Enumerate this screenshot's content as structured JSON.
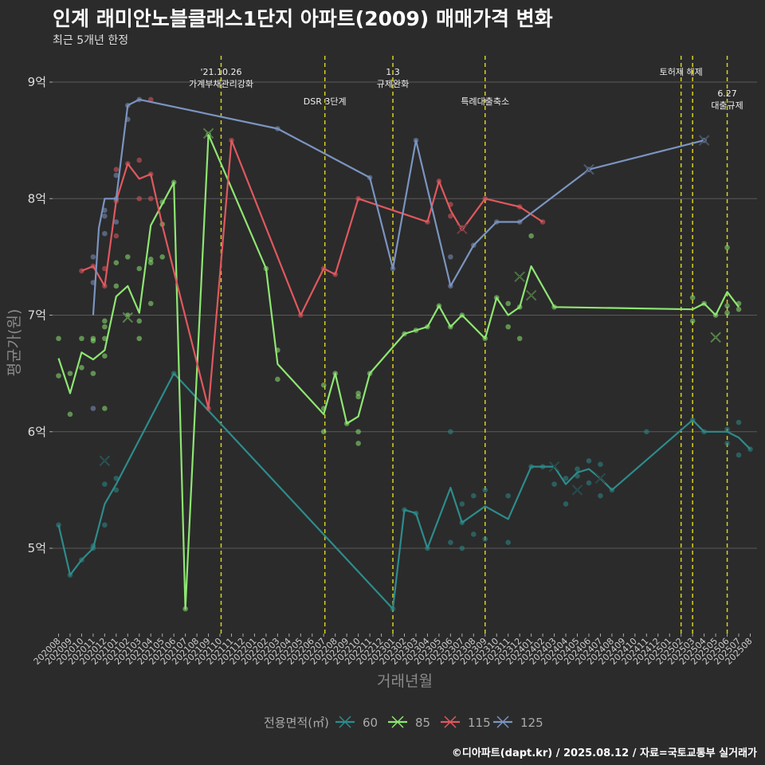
{
  "chart_data": {
    "type": "line",
    "title": "인계 래미안노블클래스1단지 아파트(2009) 매매가격 변화",
    "subtitle": "최근 5개년 한정",
    "caption": "©디아파트(dapt.kr) / 2025.08.12 / 자료=국토교통부 실거래가",
    "xlabel": "거래년월",
    "ylabel": "평균가(원)",
    "x": [
      "202008",
      "202009",
      "202010",
      "202011",
      "202012",
      "202101",
      "202102",
      "202103",
      "202104",
      "202105",
      "202106",
      "202107",
      "202108",
      "202109",
      "202110",
      "202111",
      "202112",
      "202201",
      "202202",
      "202203",
      "202204",
      "202205",
      "202206",
      "202207",
      "202208",
      "202209",
      "202210",
      "202211",
      "202212",
      "202301",
      "202302",
      "202303",
      "202304",
      "202305",
      "202306",
      "202307",
      "202308",
      "202309",
      "202310",
      "202311",
      "202312",
      "202401",
      "202402",
      "202403",
      "202404",
      "202405",
      "202406",
      "202407",
      "202408",
      "202409",
      "202410",
      "202411",
      "202412",
      "202501",
      "202502",
      "202503",
      "202504",
      "202505",
      "202506",
      "202507",
      "202508"
    ],
    "ylim": [
      4.3,
      9.3
    ],
    "yticks": [
      {
        "v": 5,
        "label": "5억"
      },
      {
        "v": 6,
        "label": "6억"
      },
      {
        "v": 7,
        "label": "7억"
      },
      {
        "v": 8,
        "label": "8억"
      },
      {
        "v": 9,
        "label": "9억"
      }
    ],
    "legend_title": "전용면적(㎡)",
    "legend_position": "bottom",
    "grid": true,
    "events": [
      {
        "x": 14.1,
        "lines": [
          "'21.10.26",
          "가계부채관리강화"
        ]
      },
      {
        "x": 23.1,
        "lines": [
          "DSR 3단계"
        ]
      },
      {
        "x": 29.0,
        "lines": [
          "1.3",
          "규제완화"
        ]
      },
      {
        "x": 37.0,
        "lines": [
          "특례대출축소"
        ]
      },
      {
        "x": 54.0,
        "lines": [
          "토허제 해제"
        ]
      },
      {
        "x": 55.0,
        "lines": []
      },
      {
        "x": 58.0,
        "lines": [
          "6.27",
          "대출규제"
        ]
      }
    ],
    "series": [
      {
        "name": "60",
        "color": "#2e8b8b",
        "line": [
          [
            0,
            5.2
          ],
          [
            1,
            4.77
          ],
          [
            2,
            4.9
          ],
          [
            3,
            5.0
          ],
          [
            4,
            5.38
          ],
          [
            5,
            5.55
          ],
          [
            10,
            6.5
          ],
          [
            29,
            4.48
          ],
          [
            30,
            5.33
          ],
          [
            31,
            5.3
          ],
          [
            32,
            5.0
          ],
          [
            34,
            5.52
          ],
          [
            35,
            5.22
          ],
          [
            37,
            5.36
          ],
          [
            39,
            5.25
          ],
          [
            41,
            5.7
          ],
          [
            42,
            5.7
          ],
          [
            43,
            5.7
          ],
          [
            44,
            5.55
          ],
          [
            45,
            5.65
          ],
          [
            46,
            5.68
          ],
          [
            47,
            5.6
          ],
          [
            48,
            5.5
          ],
          [
            55,
            6.1
          ],
          [
            56,
            6.0
          ],
          [
            58,
            6.0
          ],
          [
            59,
            5.95
          ],
          [
            60,
            5.85
          ]
        ],
        "points": [
          [
            0,
            5.2
          ],
          [
            1,
            4.77
          ],
          [
            2,
            4.9
          ],
          [
            3,
            5.0
          ],
          [
            3,
            5.02
          ],
          [
            4,
            5.2
          ],
          [
            4,
            5.55
          ],
          [
            5,
            5.5
          ],
          [
            5,
            5.6
          ],
          [
            10,
            6.5
          ],
          [
            29,
            4.48
          ],
          [
            30,
            5.33
          ],
          [
            31,
            5.3
          ],
          [
            32,
            5.0
          ],
          [
            34,
            6.0
          ],
          [
            34,
            5.05
          ],
          [
            35,
            5.38
          ],
          [
            35,
            5.22
          ],
          [
            35,
            5.0
          ],
          [
            36,
            5.12
          ],
          [
            36,
            5.45
          ],
          [
            37,
            5.08
          ],
          [
            37,
            5.5
          ],
          [
            39,
            5.05
          ],
          [
            39,
            5.45
          ],
          [
            41,
            5.7
          ],
          [
            42,
            5.7
          ],
          [
            43,
            5.55
          ],
          [
            44,
            5.6
          ],
          [
            44,
            5.38
          ],
          [
            45,
            5.68
          ],
          [
            45,
            5.62
          ],
          [
            46,
            5.75
          ],
          [
            46,
            5.56
          ],
          [
            47,
            5.72
          ],
          [
            47,
            5.45
          ],
          [
            48,
            5.5
          ],
          [
            51,
            6.0
          ],
          [
            55,
            6.1
          ],
          [
            56,
            6.0
          ],
          [
            58,
            5.9
          ],
          [
            58,
            6.02
          ],
          [
            59,
            5.8
          ],
          [
            59,
            6.08
          ],
          [
            60,
            5.85
          ]
        ],
        "crosses": [
          [
            4,
            5.75
          ],
          [
            43,
            5.7
          ],
          [
            45,
            5.5
          ],
          [
            47,
            5.6
          ]
        ]
      },
      {
        "name": "85",
        "color": "#8ee672",
        "line": [
          [
            0,
            6.63
          ],
          [
            1,
            6.33
          ],
          [
            2,
            6.68
          ],
          [
            3,
            6.62
          ],
          [
            4,
            6.7
          ],
          [
            5,
            7.16
          ],
          [
            6,
            7.25
          ],
          [
            7,
            7.02
          ],
          [
            8,
            7.77
          ],
          [
            10,
            8.14
          ],
          [
            11,
            4.48
          ],
          [
            13,
            8.55
          ],
          [
            18,
            7.4
          ],
          [
            19,
            6.58
          ],
          [
            23,
            6.15
          ],
          [
            24,
            6.5
          ],
          [
            25,
            6.07
          ],
          [
            26,
            6.13
          ],
          [
            27,
            6.5
          ],
          [
            30,
            6.84
          ],
          [
            31,
            6.87
          ],
          [
            32,
            6.9
          ],
          [
            33,
            7.08
          ],
          [
            34,
            6.9
          ],
          [
            35,
            7.0
          ],
          [
            37,
            6.8
          ],
          [
            38,
            7.15
          ],
          [
            39,
            7.0
          ],
          [
            40,
            7.07
          ],
          [
            41,
            7.42
          ],
          [
            43,
            7.07
          ],
          [
            55,
            7.05
          ],
          [
            56,
            7.1
          ],
          [
            57,
            7.0
          ],
          [
            58,
            7.2
          ],
          [
            59,
            7.07
          ]
        ],
        "points": [
          [
            0,
            6.8
          ],
          [
            0,
            6.48
          ],
          [
            1,
            6.5
          ],
          [
            1,
            6.15
          ],
          [
            2,
            6.8
          ],
          [
            2,
            6.55
          ],
          [
            3,
            6.8
          ],
          [
            3,
            6.5
          ],
          [
            3,
            6.78
          ],
          [
            4,
            6.95
          ],
          [
            4,
            6.9
          ],
          [
            4,
            6.8
          ],
          [
            4,
            6.65
          ],
          [
            4,
            6.2
          ],
          [
            5,
            7.45
          ],
          [
            5,
            7.25
          ],
          [
            6,
            7.5
          ],
          [
            6,
            7.0
          ],
          [
            7,
            7.4
          ],
          [
            7,
            6.95
          ],
          [
            7,
            6.8
          ],
          [
            8,
            7.1
          ],
          [
            8,
            7.48
          ],
          [
            8,
            7.45
          ],
          [
            9,
            7.5
          ],
          [
            9,
            7.78
          ],
          [
            9,
            7.97
          ],
          [
            10,
            8.14
          ],
          [
            11,
            4.48
          ],
          [
            13,
            8.55
          ],
          [
            18,
            7.4
          ],
          [
            19,
            6.7
          ],
          [
            19,
            6.45
          ],
          [
            23,
            6.2
          ],
          [
            23,
            6.4
          ],
          [
            23,
            6.0
          ],
          [
            24,
            6.5
          ],
          [
            25,
            6.07
          ],
          [
            26,
            6.3
          ],
          [
            26,
            6.33
          ],
          [
            26,
            6.0
          ],
          [
            26,
            5.9
          ],
          [
            27,
            6.5
          ],
          [
            30,
            6.84
          ],
          [
            31,
            6.87
          ],
          [
            32,
            6.9
          ],
          [
            33,
            7.08
          ],
          [
            34,
            6.9
          ],
          [
            35,
            7.0
          ],
          [
            37,
            6.8
          ],
          [
            38,
            7.15
          ],
          [
            39,
            7.1
          ],
          [
            39,
            6.9
          ],
          [
            40,
            6.8
          ],
          [
            40,
            7.07
          ],
          [
            41,
            7.68
          ],
          [
            43,
            7.07
          ],
          [
            55,
            7.15
          ],
          [
            55,
            6.95
          ],
          [
            56,
            7.1
          ],
          [
            57,
            7.0
          ],
          [
            58,
            7.58
          ],
          [
            58,
            7.08
          ],
          [
            58,
            7.02
          ],
          [
            59,
            7.1
          ],
          [
            59,
            7.05
          ]
        ],
        "crosses": [
          [
            6,
            6.98
          ],
          [
            13,
            8.56
          ],
          [
            40,
            7.33
          ],
          [
            41,
            7.17
          ],
          [
            57,
            6.81
          ]
        ]
      },
      {
        "name": "115",
        "color": "#e0585e",
        "line": [
          [
            2,
            7.38
          ],
          [
            3,
            7.42
          ],
          [
            4,
            7.25
          ],
          [
            5,
            7.98
          ],
          [
            6,
            8.3
          ],
          [
            7,
            8.17
          ],
          [
            8,
            8.21
          ],
          [
            9,
            7.77
          ],
          [
            13,
            6.2
          ],
          [
            15,
            8.5
          ],
          [
            21,
            7.0
          ],
          [
            23,
            7.4
          ],
          [
            24,
            7.35
          ],
          [
            26,
            8.0
          ],
          [
            32,
            7.8
          ],
          [
            33,
            8.15
          ],
          [
            34,
            7.9
          ],
          [
            35,
            7.73
          ],
          [
            37,
            8.0
          ],
          [
            40,
            7.93
          ],
          [
            42,
            7.8
          ]
        ],
        "points": [
          [
            2,
            7.38
          ],
          [
            3,
            7.42
          ],
          [
            4,
            7.25
          ],
          [
            4,
            7.4
          ],
          [
            5,
            7.98
          ],
          [
            5,
            8.25
          ],
          [
            5,
            7.68
          ],
          [
            6,
            8.3
          ],
          [
            7,
            8.0
          ],
          [
            7,
            8.33
          ],
          [
            8,
            8.0
          ],
          [
            8,
            8.21
          ],
          [
            8,
            8.85
          ],
          [
            13,
            6.2
          ],
          [
            15,
            8.5
          ],
          [
            21,
            7.0
          ],
          [
            23,
            7.4
          ],
          [
            24,
            7.35
          ],
          [
            26,
            8.0
          ],
          [
            32,
            7.8
          ],
          [
            33,
            8.15
          ],
          [
            34,
            7.95
          ],
          [
            34,
            7.85
          ],
          [
            35,
            7.75
          ],
          [
            37,
            8.0
          ],
          [
            40,
            7.93
          ],
          [
            42,
            7.8
          ]
        ],
        "crosses": [
          [
            35,
            7.74
          ]
        ]
      },
      {
        "name": "125",
        "color": "#7b94c0",
        "line": [
          [
            3,
            7.0
          ],
          [
            3.5,
            7.75
          ],
          [
            4,
            8.0
          ],
          [
            5,
            8.0
          ],
          [
            6,
            8.8
          ],
          [
            7,
            8.85
          ],
          [
            19,
            8.6
          ],
          [
            27,
            8.18
          ],
          [
            29,
            7.4
          ],
          [
            31,
            8.5
          ],
          [
            34,
            7.25
          ],
          [
            36,
            7.6
          ],
          [
            38,
            7.8
          ],
          [
            40,
            7.8
          ],
          [
            46,
            8.25
          ],
          [
            56,
            8.5
          ]
        ],
        "points": [
          [
            3,
            7.5
          ],
          [
            3,
            7.28
          ],
          [
            3,
            6.2
          ],
          [
            4,
            7.9
          ],
          [
            4,
            7.85
          ],
          [
            4,
            7.7
          ],
          [
            5,
            8.2
          ],
          [
            5,
            8.0
          ],
          [
            5,
            7.8
          ],
          [
            6,
            8.8
          ],
          [
            6,
            8.68
          ],
          [
            7,
            8.85
          ],
          [
            19,
            8.6
          ],
          [
            27,
            8.18
          ],
          [
            29,
            7.4
          ],
          [
            31,
            8.5
          ],
          [
            34,
            7.5
          ],
          [
            34,
            7.25
          ],
          [
            36,
            7.6
          ],
          [
            38,
            7.8
          ],
          [
            40,
            7.8
          ],
          [
            46,
            8.25
          ],
          [
            56,
            8.5
          ]
        ],
        "crosses": [
          [
            46,
            8.25
          ],
          [
            56,
            8.5
          ]
        ]
      }
    ]
  }
}
